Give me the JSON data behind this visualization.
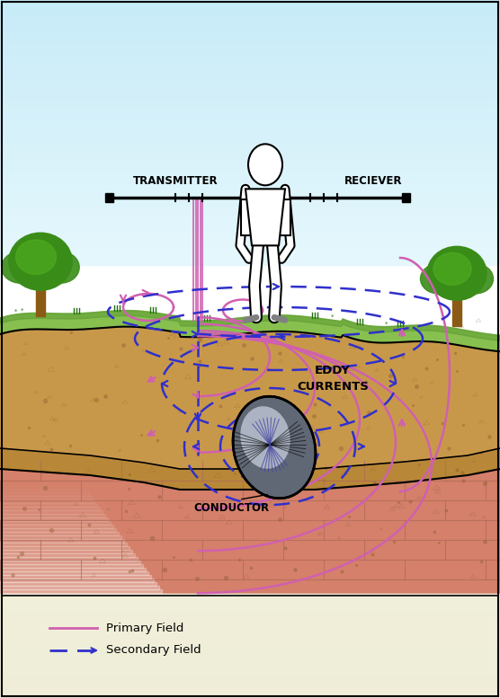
{
  "sky_top_color": "#c8eef8",
  "sky_bottom_color": "#e8f6fc",
  "grass_color": "#88c050",
  "grass_dark": "#50902a",
  "soil_color": "#c8984a",
  "soil_dark": "#a87030",
  "soil_mid_color": "#b88838",
  "brick_color": "#d4806a",
  "brick_light": "#e8c0b0",
  "brick_dark": "#b06050",
  "brick_line_color": "#b06858",
  "legend_bg": "#f0f0d0",
  "legend_bg2": "#d8d8a8",
  "primary_field_color": "#d060b0",
  "secondary_field_color": "#3030cc",
  "conductor_fill": "#909aaa",
  "conductor_light": "#c8d0dc",
  "conductor_dark": "#505870",
  "text_color": "#000000",
  "transmitter_label": "TRANSMITTER",
  "receiver_label": "RECIEVER",
  "eddy_label": "EDDY\nCURRENTS",
  "conductor_label": "CONDUCTOR",
  "primary_legend": "Primary Field",
  "secondary_legend": "Secondary Field",
  "figsize": [
    5.56,
    7.77
  ],
  "dpi": 100
}
